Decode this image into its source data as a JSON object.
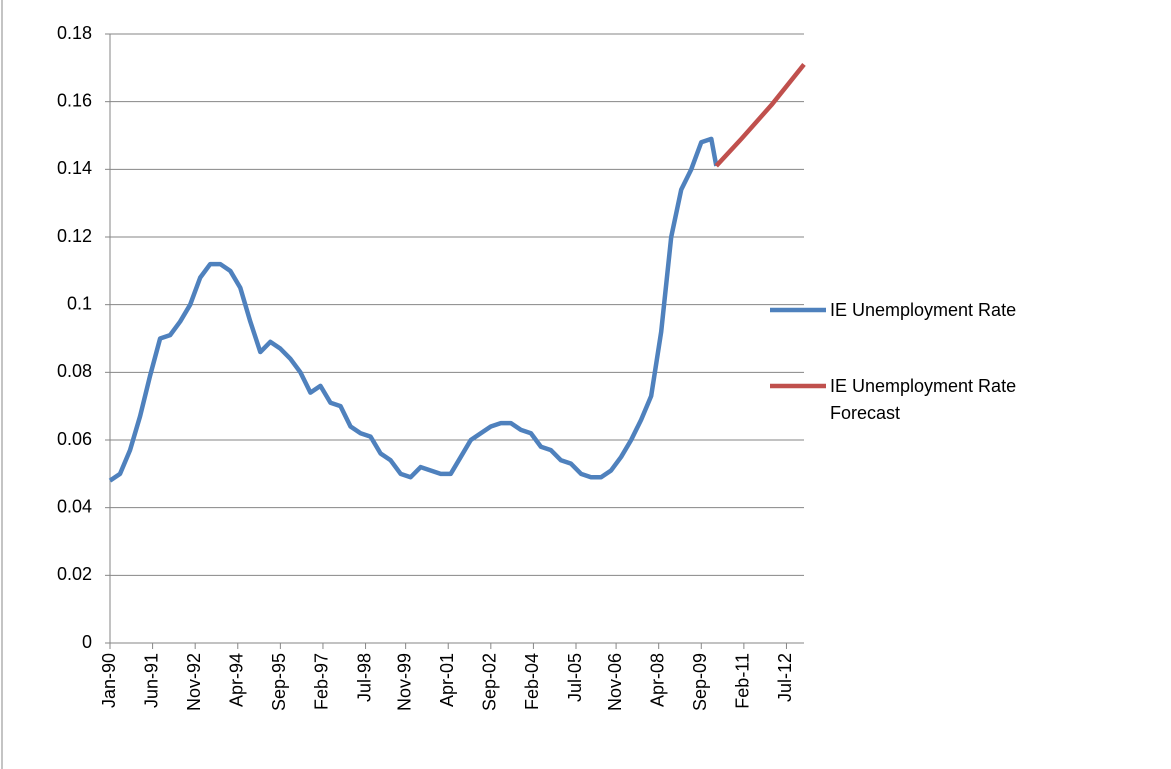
{
  "chart_data": {
    "type": "line",
    "x": [
      "Jan-90",
      "May-90",
      "Sep-90",
      "Jan-91",
      "May-91",
      "Sep-91",
      "Jan-92",
      "May-92",
      "Sep-92",
      "Jan-93",
      "May-93",
      "Sep-93",
      "Jan-94",
      "May-94",
      "Sep-94",
      "Jan-95",
      "May-95",
      "Sep-95",
      "Jan-96",
      "May-96",
      "Sep-96",
      "Jan-97",
      "May-97",
      "Sep-97",
      "Jan-98",
      "May-98",
      "Sep-98",
      "Jan-99",
      "May-99",
      "Sep-99",
      "Jan-00",
      "May-00",
      "Sep-00",
      "Jan-01",
      "May-01",
      "Sep-01",
      "Jan-02",
      "May-02",
      "Sep-02",
      "Jan-03",
      "May-03",
      "Sep-03",
      "Jan-04",
      "May-04",
      "Sep-04",
      "Jan-05",
      "May-05",
      "Sep-05",
      "Jan-06",
      "May-06",
      "Sep-06",
      "Jan-07",
      "May-07",
      "Sep-07",
      "Jan-08",
      "May-08",
      "Sep-08",
      "Jan-09",
      "May-09",
      "Sep-09",
      "Jan-10",
      "Mar-10",
      "Jan-11",
      "Jan-12",
      "Feb-13"
    ],
    "series": [
      {
        "name": "IE Unemployment Rate",
        "color": "#4f81bd",
        "values": [
          0.048,
          0.05,
          0.057,
          0.067,
          0.079,
          0.09,
          0.091,
          0.095,
          0.1,
          0.108,
          0.112,
          0.112,
          0.11,
          0.105,
          0.095,
          0.086,
          0.089,
          0.087,
          0.084,
          0.08,
          0.074,
          0.076,
          0.071,
          0.07,
          0.064,
          0.062,
          0.061,
          0.056,
          0.054,
          0.05,
          0.049,
          0.052,
          0.051,
          0.05,
          0.05,
          0.055,
          0.06,
          0.062,
          0.064,
          0.065,
          0.065,
          0.063,
          0.062,
          0.058,
          0.057,
          0.054,
          0.053,
          0.05,
          0.049,
          0.049,
          0.051,
          0.055,
          0.06,
          0.066,
          0.073,
          0.092,
          0.12,
          0.134,
          0.14,
          0.148,
          0.149,
          0.141,
          null,
          null,
          null
        ]
      },
      {
        "name": "IE Unemployment Rate Forecast",
        "color": "#c0504d",
        "values": [
          null,
          null,
          null,
          null,
          null,
          null,
          null,
          null,
          null,
          null,
          null,
          null,
          null,
          null,
          null,
          null,
          null,
          null,
          null,
          null,
          null,
          null,
          null,
          null,
          null,
          null,
          null,
          null,
          null,
          null,
          null,
          null,
          null,
          null,
          null,
          null,
          null,
          null,
          null,
          null,
          null,
          null,
          null,
          null,
          null,
          null,
          null,
          null,
          null,
          null,
          null,
          null,
          null,
          null,
          null,
          null,
          null,
          null,
          null,
          null,
          null,
          0.141,
          0.149,
          0.159,
          0.171
        ]
      }
    ],
    "xticks": [
      "Jan-90",
      "Jun-91",
      "Nov-92",
      "Apr-94",
      "Sep-95",
      "Feb-97",
      "Jul-98",
      "Nov-99",
      "Apr-01",
      "Sep-02",
      "Feb-04",
      "Jul-05",
      "Nov-06",
      "Apr-08",
      "Sep-09",
      "Feb-11",
      "Jul-12"
    ],
    "ylim": [
      0,
      0.18
    ],
    "yticks": [
      0,
      0.02,
      0.04,
      0.06,
      0.08,
      0.1,
      0.12,
      0.14,
      0.16,
      0.18
    ],
    "grid": true,
    "legend": "right"
  }
}
